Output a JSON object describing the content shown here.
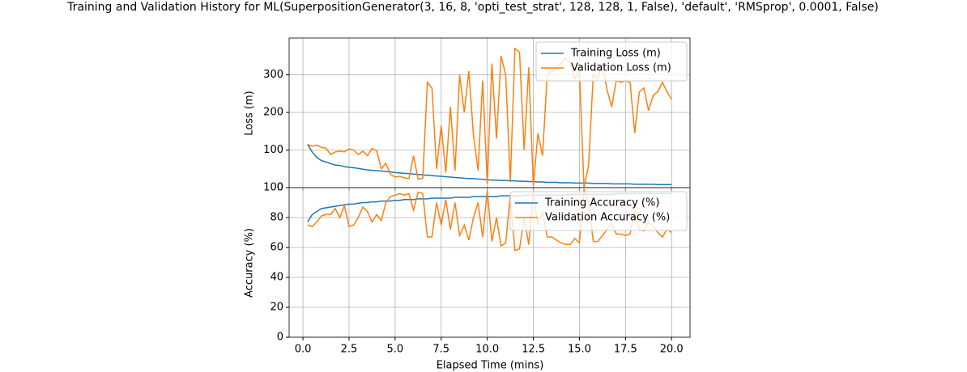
{
  "chart_data": [
    {
      "type": "line",
      "title": "Training and Validation History for ML(SuperpositionGenerator(3, 16, 8, 'opti_test_strat', 128, 128, 1, False), 'default', 'RMSprop', 0.0001, False)",
      "ylabel": "Loss (m)",
      "grid": true,
      "legend": "upper right",
      "xlim": [
        -0.75,
        21.0
      ],
      "xticks": [
        0,
        2.5,
        5,
        7.5,
        10,
        12.5,
        15,
        17.5,
        20
      ],
      "ylim": [
        0,
        398
      ],
      "yticks": [
        0,
        100,
        200,
        300
      ],
      "x": [
        0.25,
        0.5,
        0.75,
        1,
        1.25,
        1.5,
        1.75,
        2,
        2.25,
        2.5,
        2.75,
        3,
        3.25,
        3.5,
        3.75,
        4,
        4.25,
        4.5,
        4.75,
        5,
        5.25,
        5.5,
        5.75,
        6,
        6.25,
        6.5,
        6.75,
        7,
        7.25,
        7.5,
        7.75,
        8,
        8.25,
        8.5,
        8.75,
        9,
        9.25,
        9.5,
        9.75,
        10,
        10.25,
        10.5,
        10.75,
        11,
        11.25,
        11.5,
        11.75,
        12,
        12.25,
        12.5,
        12.75,
        13,
        13.25,
        13.5,
        13.75,
        14,
        14.25,
        14.5,
        14.75,
        15,
        15.25,
        15.5,
        15.75,
        16,
        16.25,
        16.5,
        16.75,
        17,
        17.25,
        17.5,
        17.75,
        18,
        18.25,
        18.5,
        18.75,
        19,
        19.25,
        19.5,
        19.75,
        20
      ],
      "series": [
        {
          "name": "Training Loss (m)",
          "color": "#1f77b4",
          "values": [
            115,
            95,
            80,
            72,
            68,
            64,
            60,
            59,
            56,
            54,
            53,
            51,
            49,
            47,
            46,
            45,
            44,
            43,
            42,
            40,
            39,
            38,
            37,
            36,
            35,
            34,
            33,
            32,
            31,
            30,
            29,
            28,
            27,
            26,
            25,
            24,
            24,
            23,
            22,
            21,
            20,
            20,
            19,
            19,
            18,
            18,
            17,
            17,
            16,
            16,
            15,
            15,
            14,
            14,
            14,
            13,
            13,
            13,
            12,
            12,
            12,
            12,
            11,
            11,
            11,
            11,
            10,
            10,
            10,
            10,
            10,
            9,
            9,
            9,
            9,
            9,
            8,
            8,
            8,
            8
          ]
        },
        {
          "name": "Validation Loss (m)",
          "color": "#ff7f0e",
          "values": [
            115,
            110,
            113,
            107,
            105,
            88,
            95,
            97,
            95,
            103,
            100,
            88,
            97,
            85,
            104,
            98,
            50,
            65,
            35,
            28,
            30,
            26,
            24,
            85,
            22,
            25,
            280,
            265,
            50,
            165,
            40,
            215,
            45,
            300,
            200,
            310,
            140,
            45,
            285,
            10,
            330,
            130,
            350,
            300,
            15,
            370,
            360,
            100,
            320,
            5,
            145,
            85,
            300,
            310,
            320,
            330,
            345,
            330,
            290,
            310,
            0,
            60,
            300,
            290,
            330,
            260,
            215,
            285,
            280,
            285,
            280,
            145,
            255,
            265,
            205,
            245,
            255,
            280,
            255,
            235
          ]
        }
      ]
    },
    {
      "type": "line",
      "xlabel": "Elapsed Time (mins)",
      "ylabel": "Accuracy (%)",
      "grid": true,
      "legend": "upper right",
      "xlim": [
        -0.75,
        21.0
      ],
      "xticks": [
        {
          "value": 0,
          "label": "0.0"
        },
        2.5,
        {
          "value": 5,
          "label": "5.0"
        },
        7.5,
        {
          "value": 10,
          "label": "10.0"
        },
        12.5,
        {
          "value": 15,
          "label": "15.0"
        },
        17.5,
        {
          "value": 20,
          "label": "20.0"
        }
      ],
      "ylim": [
        0,
        100
      ],
      "yticks": [
        0,
        20,
        40,
        60,
        80,
        100
      ],
      "x": [
        0.25,
        0.5,
        0.75,
        1,
        1.25,
        1.5,
        1.75,
        2,
        2.25,
        2.5,
        2.75,
        3,
        3.25,
        3.5,
        3.75,
        4,
        4.25,
        4.5,
        4.75,
        5,
        5.25,
        5.5,
        5.75,
        6,
        6.25,
        6.5,
        6.75,
        7,
        7.25,
        7.5,
        7.75,
        8,
        8.25,
        8.5,
        8.75,
        9,
        9.25,
        9.5,
        9.75,
        10,
        10.25,
        10.5,
        10.75,
        11,
        11.25,
        11.5,
        11.75,
        12,
        12.25,
        12.5,
        12.75,
        13,
        13.25,
        13.5,
        13.75,
        14,
        14.25,
        14.5,
        14.75,
        15,
        15.25,
        15.5,
        15.75,
        16,
        16.25,
        16.5,
        16.75,
        17,
        17.25,
        17.5,
        17.75,
        18,
        18.25,
        18.5,
        18.75,
        19,
        19.25,
        19.5,
        19.75,
        20
      ],
      "series": [
        {
          "name": "Training Accuracy (%)",
          "color": "#1f77b4",
          "values": [
            77,
            82,
            84,
            86,
            86.5,
            87,
            87.5,
            88,
            88.5,
            89,
            89,
            89.5,
            90,
            90,
            90.5,
            90.5,
            91,
            91,
            91,
            91.5,
            91.5,
            92,
            92,
            92,
            92.5,
            92.5,
            92.5,
            93,
            93,
            93,
            93,
            93,
            93.5,
            93.5,
            93.5,
            93.5,
            94,
            94,
            94,
            94,
            94,
            94,
            94.5,
            94.5,
            94.5,
            94.5,
            94.5,
            95,
            95,
            95,
            95,
            95,
            95,
            95,
            95,
            95,
            95,
            95.5,
            95.5,
            95.5,
            95.5,
            95.5,
            95.5,
            95.5,
            95.5,
            95.5,
            95.5,
            96,
            96,
            96,
            96,
            96,
            96,
            96,
            96,
            96,
            96,
            96,
            96,
            96
          ]
        },
        {
          "name": "Validation Accuracy (%)",
          "color": "#ff7f0e",
          "values": [
            75,
            74,
            77,
            81,
            82,
            82,
            86,
            80,
            88,
            74,
            75,
            80,
            87,
            84,
            77,
            82,
            78,
            90,
            94,
            95,
            96,
            95,
            96,
            85,
            97,
            96,
            67,
            67,
            90,
            75,
            92,
            72,
            90,
            68,
            75,
            65,
            80,
            90,
            67,
            98,
            64,
            80,
            61,
            63,
            95,
            58,
            59,
            80,
            62,
            97,
            75,
            84,
            67,
            67,
            65,
            63,
            62,
            62,
            66,
            63,
            99,
            90,
            64,
            64,
            68,
            72,
            76,
            69,
            69,
            68,
            69,
            85,
            72,
            71,
            77,
            74,
            70,
            67,
            72,
            70
          ]
        }
      ]
    }
  ]
}
